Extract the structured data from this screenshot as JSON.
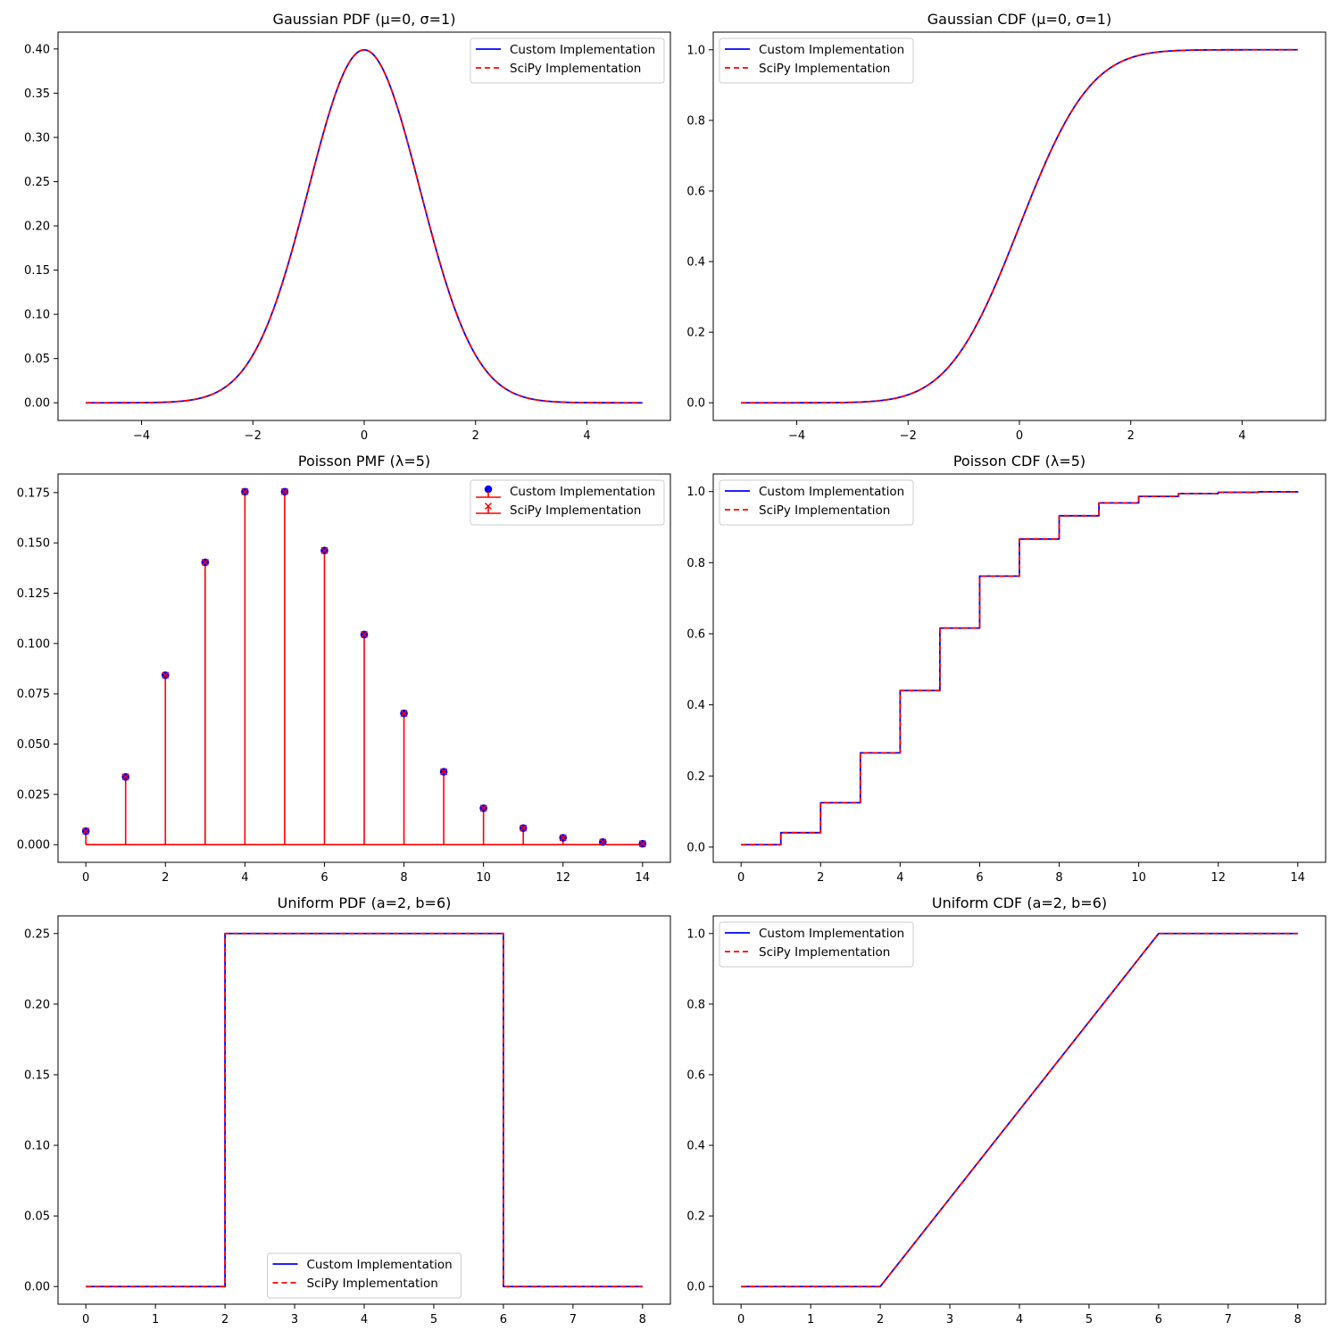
{
  "colors": {
    "custom": "#0000ff",
    "scipy": "#ff0000",
    "axes": "#000000",
    "legend_border": "#cccccc"
  },
  "chart_data": [
    {
      "id": "gauss-pdf",
      "type": "line",
      "title": "Gaussian PDF (μ=0, σ=1)",
      "function": {
        "kind": "gaussian_pdf",
        "mu": 0,
        "sigma": 1
      },
      "x_range": [
        -5,
        5
      ],
      "xlim": [
        -5.5,
        5.5
      ],
      "ylim": [
        -0.01995,
        0.419
      ],
      "xticks": [
        -4,
        -2,
        0,
        2,
        4
      ],
      "xtick_labels": [
        "−4",
        "−2",
        "0",
        "2",
        "4"
      ],
      "yticks": [
        0,
        0.05,
        0.1,
        0.15,
        0.2,
        0.25,
        0.3,
        0.35,
        0.4
      ],
      "ytick_labels": [
        "0.00",
        "0.05",
        "0.10",
        "0.15",
        "0.20",
        "0.25",
        "0.30",
        "0.35",
        "0.40"
      ],
      "legend_loc": "upper right",
      "series": [
        {
          "name": "Custom Implementation",
          "style": "solid-blue"
        },
        {
          "name": "SciPy Implementation",
          "style": "dashed-red"
        }
      ]
    },
    {
      "id": "gauss-cdf",
      "type": "line",
      "title": "Gaussian CDF (μ=0, σ=1)",
      "function": {
        "kind": "gaussian_cdf",
        "mu": 0,
        "sigma": 1
      },
      "x_range": [
        -5,
        5
      ],
      "xlim": [
        -5.5,
        5.5
      ],
      "ylim": [
        -0.05,
        1.05
      ],
      "xticks": [
        -4,
        -2,
        0,
        2,
        4
      ],
      "xtick_labels": [
        "−4",
        "−2",
        "0",
        "2",
        "4"
      ],
      "yticks": [
        0,
        0.2,
        0.4,
        0.6,
        0.8,
        1.0
      ],
      "ytick_labels": [
        "0.0",
        "0.2",
        "0.4",
        "0.6",
        "0.8",
        "1.0"
      ],
      "legend_loc": "upper left",
      "series": [
        {
          "name": "Custom Implementation",
          "style": "solid-blue"
        },
        {
          "name": "SciPy Implementation",
          "style": "dashed-red"
        }
      ]
    },
    {
      "id": "poisson-pmf",
      "type": "stem",
      "title": "Poisson PMF (λ=5)",
      "x": [
        0,
        1,
        2,
        3,
        4,
        5,
        6,
        7,
        8,
        9,
        10,
        11,
        12,
        13,
        14
      ],
      "values": [
        0.00674,
        0.03369,
        0.08422,
        0.14037,
        0.17547,
        0.17547,
        0.14622,
        0.10444,
        0.06528,
        0.03627,
        0.01813,
        0.00824,
        0.00343,
        0.00132,
        0.00047
      ],
      "xlim": [
        -0.7,
        14.7
      ],
      "ylim": [
        -0.00877,
        0.18424
      ],
      "xticks": [
        0,
        2,
        4,
        6,
        8,
        10,
        12,
        14
      ],
      "xtick_labels": [
        "0",
        "2",
        "4",
        "6",
        "8",
        "10",
        "12",
        "14"
      ],
      "yticks": [
        0,
        0.025,
        0.05,
        0.075,
        0.1,
        0.125,
        0.15,
        0.175
      ],
      "ytick_labels": [
        "0.000",
        "0.025",
        "0.050",
        "0.075",
        "0.100",
        "0.125",
        "0.150",
        "0.175"
      ],
      "legend_loc": "upper right",
      "series": [
        {
          "name": "Custom Implementation",
          "style": "blue-dot"
        },
        {
          "name": "SciPy Implementation",
          "style": "red-stem-x"
        }
      ]
    },
    {
      "id": "poisson-cdf",
      "type": "step",
      "title": "Poisson CDF (λ=5)",
      "x": [
        0,
        1,
        2,
        3,
        4,
        5,
        6,
        7,
        8,
        9,
        10,
        11,
        12,
        13,
        14
      ],
      "values": [
        0.00674,
        0.04043,
        0.12465,
        0.26503,
        0.44049,
        0.61596,
        0.76218,
        0.86663,
        0.93191,
        0.96817,
        0.9863,
        0.99455,
        0.99798,
        0.9993,
        0.99977
      ],
      "xlim": [
        -0.7,
        14.7
      ],
      "ylim": [
        -0.04291,
        1.04942
      ],
      "xticks": [
        0,
        2,
        4,
        6,
        8,
        10,
        12,
        14
      ],
      "xtick_labels": [
        "0",
        "2",
        "4",
        "6",
        "8",
        "10",
        "12",
        "14"
      ],
      "yticks": [
        0,
        0.2,
        0.4,
        0.6,
        0.8,
        1.0
      ],
      "ytick_labels": [
        "0.0",
        "0.2",
        "0.4",
        "0.6",
        "0.8",
        "1.0"
      ],
      "legend_loc": "upper left",
      "series": [
        {
          "name": "Custom Implementation",
          "style": "solid-blue"
        },
        {
          "name": "SciPy Implementation",
          "style": "dashed-red"
        }
      ]
    },
    {
      "id": "uniform-pdf",
      "type": "line",
      "title": "Uniform PDF (a=2, b=6)",
      "x": [
        0,
        2,
        2,
        6,
        6,
        8
      ],
      "values": [
        0,
        0,
        0.25,
        0.25,
        0,
        0
      ],
      "xlim": [
        -0.4,
        8.4
      ],
      "ylim": [
        -0.0125,
        0.2625
      ],
      "xticks": [
        0,
        1,
        2,
        3,
        4,
        5,
        6,
        7,
        8
      ],
      "xtick_labels": [
        "0",
        "1",
        "2",
        "3",
        "4",
        "5",
        "6",
        "7",
        "8"
      ],
      "yticks": [
        0,
        0.05,
        0.1,
        0.15,
        0.2,
        0.25
      ],
      "ytick_labels": [
        "0.00",
        "0.05",
        "0.10",
        "0.15",
        "0.20",
        "0.25"
      ],
      "legend_loc": "lower center",
      "series": [
        {
          "name": "Custom Implementation",
          "style": "solid-blue"
        },
        {
          "name": "SciPy Implementation",
          "style": "dashed-red"
        }
      ]
    },
    {
      "id": "uniform-cdf",
      "type": "line",
      "title": "Uniform CDF (a=2, b=6)",
      "x": [
        0,
        2,
        6,
        8
      ],
      "values": [
        0,
        0,
        1,
        1
      ],
      "xlim": [
        -0.4,
        8.4
      ],
      "ylim": [
        -0.05,
        1.05
      ],
      "xticks": [
        0,
        1,
        2,
        3,
        4,
        5,
        6,
        7,
        8
      ],
      "xtick_labels": [
        "0",
        "1",
        "2",
        "3",
        "4",
        "5",
        "6",
        "7",
        "8"
      ],
      "yticks": [
        0,
        0.2,
        0.4,
        0.6,
        0.8,
        1.0
      ],
      "ytick_labels": [
        "0.0",
        "0.2",
        "0.4",
        "0.6",
        "0.8",
        "1.0"
      ],
      "legend_loc": "upper left",
      "series": [
        {
          "name": "Custom Implementation",
          "style": "solid-blue"
        },
        {
          "name": "SciPy Implementation",
          "style": "dashed-red"
        }
      ]
    }
  ]
}
